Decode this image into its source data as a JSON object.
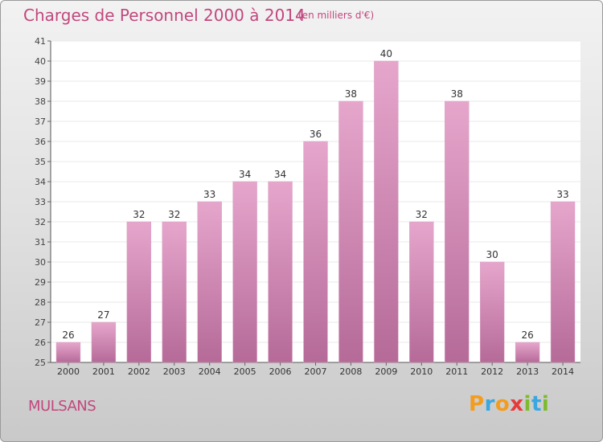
{
  "title": "Charges de Personnel 2000 à 2014",
  "unit": "(en milliers d'€)",
  "town": "MULSANS",
  "logo": {
    "letters": [
      "P",
      "r",
      "o",
      "x",
      "i",
      "t",
      "i"
    ],
    "colors": [
      "#f39c1e",
      "#3aa7e0",
      "#f39c1e",
      "#e63b3b",
      "#7dbb2e",
      "#3aa7e0",
      "#7dbb2e"
    ]
  },
  "colors": {
    "bar_top": "#e6a6cc",
    "bar_bottom": "#b56a98",
    "text_accent": "#c2477e",
    "grid": "#e8e8e8",
    "plot_bg": "#ffffff"
  },
  "chart_data": {
    "type": "bar",
    "categories": [
      "2000",
      "2001",
      "2002",
      "2003",
      "2004",
      "2005",
      "2006",
      "2007",
      "2008",
      "2009",
      "2010",
      "2011",
      "2012",
      "2013",
      "2014"
    ],
    "values": [
      26,
      27,
      32,
      32,
      33,
      34,
      34,
      36,
      38,
      40,
      32,
      38,
      30,
      26,
      33
    ],
    "yticks": [
      25,
      26,
      27,
      28,
      29,
      30,
      31,
      32,
      33,
      34,
      35,
      36,
      37,
      38,
      39,
      40,
      41
    ],
    "ylim": [
      25,
      41
    ],
    "grid": true,
    "title": "Charges de Personnel 2000 à 2014",
    "xlabel": "",
    "ylabel": ""
  }
}
